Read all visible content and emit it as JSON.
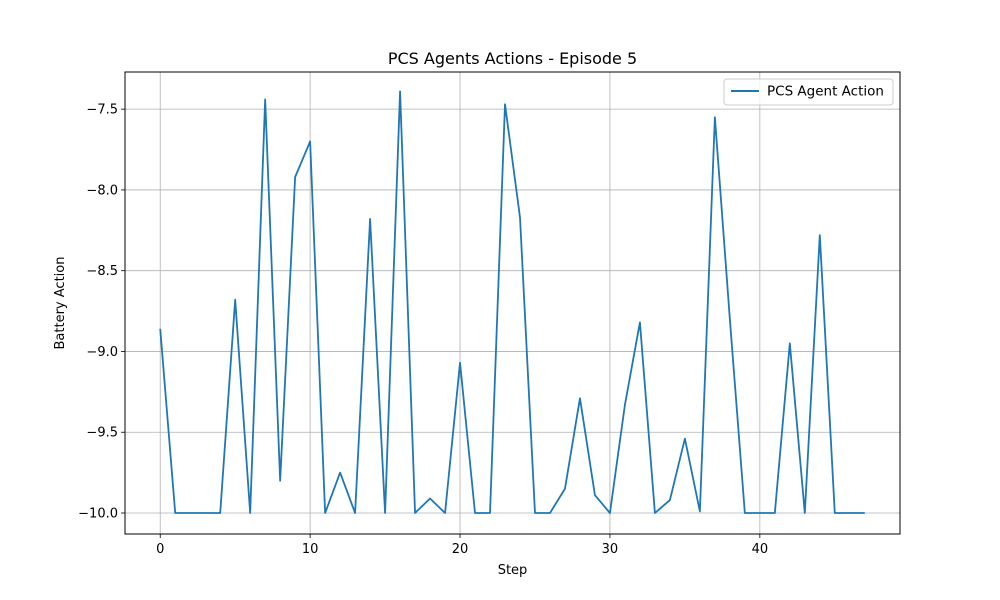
{
  "chart_data": {
    "type": "line",
    "title": "PCS Agents Actions - Episode 5",
    "xlabel": "Step",
    "ylabel": "Battery Action",
    "xlim": [
      -2.35,
      49.35
    ],
    "ylim": [
      -10.13,
      -7.27
    ],
    "xticks": [
      0,
      10,
      20,
      30,
      40
    ],
    "yticks": [
      -10.0,
      -9.5,
      -9.0,
      -8.5,
      -8.0,
      -7.5
    ],
    "ytick_labels": [
      "−10.0",
      "−9.5",
      "−9.0",
      "−8.5",
      "−8.0",
      "−7.5"
    ],
    "grid": true,
    "legend_position": "top-right",
    "series": [
      {
        "name": "PCS Agent Action",
        "color": "#1f77b4",
        "x": [
          0,
          1,
          2,
          3,
          4,
          5,
          6,
          7,
          8,
          9,
          10,
          11,
          12,
          13,
          14,
          15,
          16,
          17,
          18,
          19,
          20,
          21,
          22,
          23,
          24,
          25,
          26,
          27,
          28,
          29,
          30,
          31,
          32,
          33,
          34,
          35,
          36,
          37,
          38,
          39,
          40,
          41,
          42,
          43,
          44,
          45,
          46,
          47
        ],
        "y": [
          -8.86,
          -10.0,
          -10.0,
          -10.0,
          -10.0,
          -8.68,
          -10.0,
          -7.44,
          -9.8,
          -7.92,
          -7.7,
          -10.0,
          -9.75,
          -10.0,
          -8.18,
          -10.0,
          -7.39,
          -10.0,
          -9.91,
          -10.0,
          -9.07,
          -10.0,
          -10.0,
          -7.47,
          -8.17,
          -10.0,
          -10.0,
          -9.85,
          -9.29,
          -9.89,
          -10.0,
          -9.33,
          -8.82,
          -10.0,
          -9.92,
          -9.54,
          -9.99,
          -7.55,
          -8.8,
          -10.0,
          -10.0,
          -10.0,
          -8.95,
          -10.0,
          -8.28,
          -10.0,
          -10.0,
          -10.0
        ]
      }
    ]
  }
}
